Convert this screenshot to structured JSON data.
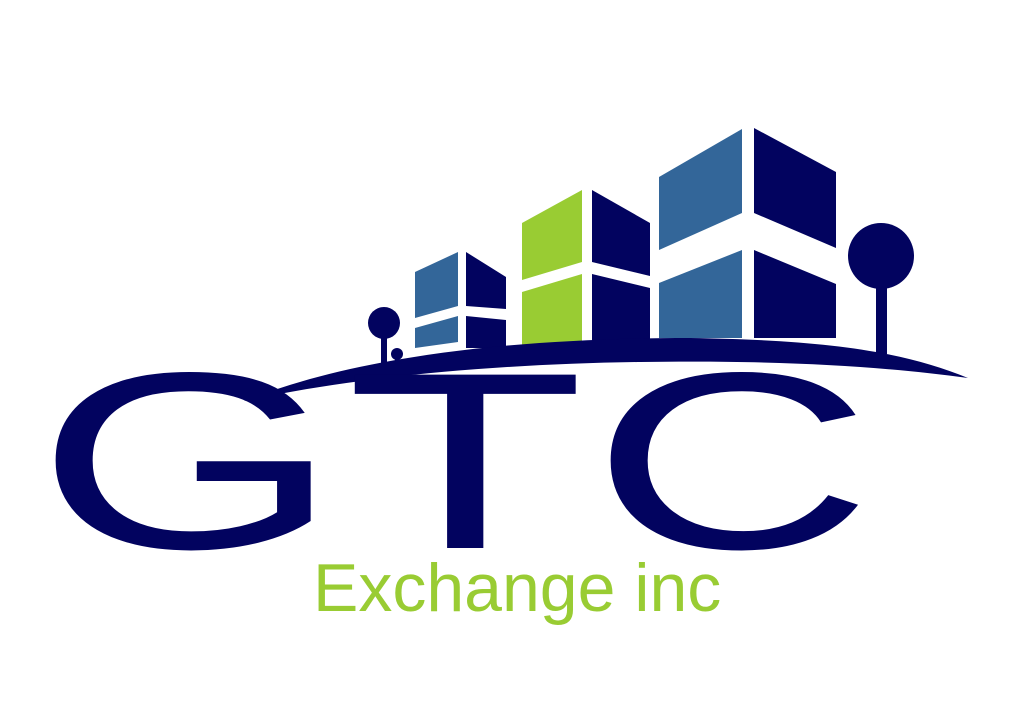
{
  "logo": {
    "letters": "GTC",
    "tagline": "Exchange inc"
  },
  "colors": {
    "navy": "#02035f",
    "steel_blue": "#336699",
    "lime_green": "#99cc33",
    "background": "#ffffff"
  },
  "icons": {
    "buildings": "building-icons",
    "trees": "tree-icons",
    "hill": "hill-swoosh"
  }
}
